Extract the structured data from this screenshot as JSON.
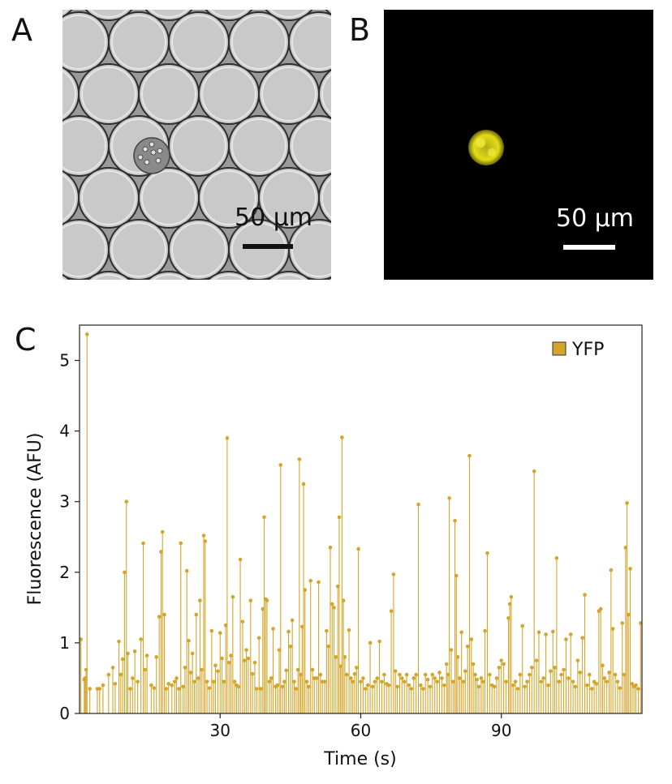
{
  "panels": {
    "a": {
      "label": "A",
      "scale_label": "50 µm"
    },
    "b": {
      "label": "B",
      "scale_label": "50 µm"
    },
    "c": {
      "label": "C"
    }
  },
  "colors": {
    "series": "#d4a52a",
    "fluor_cell": "#e8e41a"
  },
  "chart_data": {
    "type": "stem",
    "xlabel": "Time (s)",
    "ylabel": "Fluorescence (AFU)",
    "xlim": [
      0,
      120
    ],
    "ylim": [
      0,
      5.5
    ],
    "xticks": [
      30,
      60,
      90
    ],
    "yticks": [
      0,
      1,
      2,
      3,
      4,
      5
    ],
    "legend": {
      "position": "top-right"
    },
    "series": [
      {
        "name": "YFP",
        "color": "#d4a52a",
        "points": [
          [
            0.3,
            1.05
          ],
          [
            1.0,
            0.48
          ],
          [
            1.2,
            0.5
          ],
          [
            1.4,
            0.62
          ],
          [
            1.6,
            5.37
          ],
          [
            2.2,
            0.35
          ],
          [
            3.8,
            0.35
          ],
          [
            4.3,
            0.35
          ],
          [
            5.0,
            0.4
          ],
          [
            6.2,
            0.55
          ],
          [
            7.1,
            0.65
          ],
          [
            7.6,
            0.42
          ],
          [
            8.4,
            1.02
          ],
          [
            8.8,
            0.55
          ],
          [
            9.2,
            0.77
          ],
          [
            9.6,
            2.0
          ],
          [
            10.0,
            3.0
          ],
          [
            10.3,
            0.85
          ],
          [
            10.8,
            0.35
          ],
          [
            11.3,
            0.5
          ],
          [
            11.8,
            0.88
          ],
          [
            12.4,
            0.45
          ],
          [
            13.1,
            1.05
          ],
          [
            13.6,
            2.41
          ],
          [
            14.0,
            0.62
          ],
          [
            14.4,
            0.82
          ],
          [
            15.3,
            0.4
          ],
          [
            15.9,
            0.36
          ],
          [
            16.4,
            0.8
          ],
          [
            17.0,
            1.37
          ],
          [
            17.4,
            2.29
          ],
          [
            17.7,
            2.57
          ],
          [
            18.1,
            1.4
          ],
          [
            18.5,
            0.35
          ],
          [
            19.0,
            0.42
          ],
          [
            19.7,
            0.4
          ],
          [
            20.3,
            0.45
          ],
          [
            20.7,
            0.5
          ],
          [
            21.2,
            0.35
          ],
          [
            21.6,
            2.41
          ],
          [
            22.1,
            0.38
          ],
          [
            22.5,
            0.65
          ],
          [
            22.9,
            2.02
          ],
          [
            23.3,
            1.03
          ],
          [
            23.7,
            0.58
          ],
          [
            24.1,
            0.85
          ],
          [
            24.5,
            0.45
          ],
          [
            24.9,
            1.4
          ],
          [
            25.3,
            0.5
          ],
          [
            25.7,
            1.6
          ],
          [
            26.1,
            0.62
          ],
          [
            26.5,
            2.52
          ],
          [
            26.8,
            2.44
          ],
          [
            27.2,
            0.45
          ],
          [
            27.7,
            0.36
          ],
          [
            28.2,
            1.17
          ],
          [
            28.6,
            0.45
          ],
          [
            29.0,
            0.68
          ],
          [
            29.5,
            0.6
          ],
          [
            30.0,
            1.14
          ],
          [
            30.4,
            0.78
          ],
          [
            30.8,
            0.45
          ],
          [
            31.2,
            1.25
          ],
          [
            31.5,
            3.9
          ],
          [
            31.9,
            0.72
          ],
          [
            32.3,
            0.82
          ],
          [
            32.7,
            1.65
          ],
          [
            33.1,
            0.45
          ],
          [
            33.5,
            0.4
          ],
          [
            33.9,
            0.38
          ],
          [
            34.3,
            2.18
          ],
          [
            34.8,
            1.3
          ],
          [
            35.2,
            0.75
          ],
          [
            35.6,
            0.9
          ],
          [
            36.0,
            0.78
          ],
          [
            36.5,
            1.6
          ],
          [
            36.9,
            0.56
          ],
          [
            37.4,
            0.72
          ],
          [
            37.8,
            0.35
          ],
          [
            38.3,
            1.07
          ],
          [
            38.7,
            0.35
          ],
          [
            39.1,
            1.48
          ],
          [
            39.4,
            2.78
          ],
          [
            39.7,
            1.62
          ],
          [
            40.0,
            1.6
          ],
          [
            40.5,
            0.45
          ],
          [
            40.9,
            0.5
          ],
          [
            41.3,
            1.2
          ],
          [
            41.8,
            0.38
          ],
          [
            42.2,
            0.4
          ],
          [
            42.6,
            0.9
          ],
          [
            42.9,
            3.52
          ],
          [
            43.3,
            0.38
          ],
          [
            43.7,
            0.45
          ],
          [
            44.1,
            0.61
          ],
          [
            44.6,
            1.16
          ],
          [
            45.0,
            0.95
          ],
          [
            45.4,
            1.32
          ],
          [
            45.8,
            0.45
          ],
          [
            46.2,
            0.35
          ],
          [
            46.6,
            0.62
          ],
          [
            46.9,
            3.6
          ],
          [
            47.2,
            0.55
          ],
          [
            47.5,
            1.23
          ],
          [
            47.8,
            3.25
          ],
          [
            48.1,
            1.75
          ],
          [
            48.5,
            0.45
          ],
          [
            48.9,
            0.38
          ],
          [
            49.3,
            1.88
          ],
          [
            49.7,
            0.62
          ],
          [
            50.1,
            0.5
          ],
          [
            50.6,
            0.5
          ],
          [
            51.0,
            1.86
          ],
          [
            51.4,
            0.55
          ],
          [
            51.8,
            0.45
          ],
          [
            52.3,
            0.45
          ],
          [
            52.7,
            1.17
          ],
          [
            53.1,
            0.95
          ],
          [
            53.5,
            2.35
          ],
          [
            53.9,
            1.55
          ],
          [
            54.3,
            1.5
          ],
          [
            54.7,
            0.8
          ],
          [
            55.1,
            1.8
          ],
          [
            55.4,
            2.78
          ],
          [
            55.7,
            0.67
          ],
          [
            56.0,
            3.91
          ],
          [
            56.3,
            1.6
          ],
          [
            56.6,
            0.8
          ],
          [
            57.0,
            0.55
          ],
          [
            57.5,
            1.18
          ],
          [
            57.9,
            0.5
          ],
          [
            58.3,
            0.45
          ],
          [
            58.7,
            0.56
          ],
          [
            59.1,
            0.65
          ],
          [
            59.5,
            2.33
          ],
          [
            60.0,
            0.45
          ],
          [
            60.5,
            0.5
          ],
          [
            61.0,
            0.35
          ],
          [
            61.5,
            0.4
          ],
          [
            62.0,
            1.0
          ],
          [
            62.5,
            0.38
          ],
          [
            63.0,
            0.45
          ],
          [
            63.5,
            0.5
          ],
          [
            64.0,
            1.02
          ],
          [
            64.5,
            0.45
          ],
          [
            65.0,
            0.55
          ],
          [
            65.5,
            0.42
          ],
          [
            66.0,
            0.4
          ],
          [
            66.5,
            1.45
          ],
          [
            67.0,
            1.97
          ],
          [
            67.4,
            0.6
          ],
          [
            67.8,
            0.38
          ],
          [
            68.3,
            0.55
          ],
          [
            68.8,
            0.5
          ],
          [
            69.3,
            0.45
          ],
          [
            69.8,
            0.55
          ],
          [
            70.3,
            0.4
          ],
          [
            70.8,
            0.35
          ],
          [
            71.3,
            0.5
          ],
          [
            71.8,
            0.55
          ],
          [
            72.3,
            2.96
          ],
          [
            72.8,
            0.4
          ],
          [
            73.3,
            0.35
          ],
          [
            73.8,
            0.55
          ],
          [
            74.3,
            0.48
          ],
          [
            74.8,
            0.38
          ],
          [
            75.3,
            0.55
          ],
          [
            75.8,
            0.5
          ],
          [
            76.3,
            0.45
          ],
          [
            76.8,
            0.58
          ],
          [
            77.3,
            0.5
          ],
          [
            77.8,
            0.4
          ],
          [
            78.3,
            0.7
          ],
          [
            78.6,
            0.55
          ],
          [
            78.9,
            3.05
          ],
          [
            79.3,
            0.9
          ],
          [
            79.7,
            0.45
          ],
          [
            80.1,
            2.73
          ],
          [
            80.4,
            1.95
          ],
          [
            80.7,
            0.8
          ],
          [
            81.1,
            0.5
          ],
          [
            81.5,
            1.15
          ],
          [
            81.9,
            0.45
          ],
          [
            82.3,
            0.6
          ],
          [
            82.8,
            0.95
          ],
          [
            83.2,
            3.65
          ],
          [
            83.6,
            1.05
          ],
          [
            84.0,
            0.7
          ],
          [
            84.4,
            0.55
          ],
          [
            84.8,
            0.48
          ],
          [
            85.2,
            0.38
          ],
          [
            85.7,
            0.5
          ],
          [
            86.1,
            0.45
          ],
          [
            86.5,
            1.17
          ],
          [
            87.0,
            2.27
          ],
          [
            87.5,
            0.55
          ],
          [
            88.0,
            0.4
          ],
          [
            88.5,
            0.38
          ],
          [
            89.0,
            0.5
          ],
          [
            89.5,
            0.65
          ],
          [
            90.0,
            0.75
          ],
          [
            90.5,
            0.7
          ],
          [
            91.0,
            0.45
          ],
          [
            91.5,
            1.35
          ],
          [
            91.8,
            1.55
          ],
          [
            92.1,
            1.65
          ],
          [
            92.5,
            0.4
          ],
          [
            93.0,
            0.45
          ],
          [
            93.5,
            0.35
          ],
          [
            94.0,
            0.55
          ],
          [
            94.5,
            1.24
          ],
          [
            95.0,
            0.38
          ],
          [
            95.5,
            0.45
          ],
          [
            96.0,
            0.55
          ],
          [
            96.5,
            0.65
          ],
          [
            97.0,
            3.43
          ],
          [
            97.5,
            0.75
          ],
          [
            98.0,
            1.15
          ],
          [
            98.5,
            0.45
          ],
          [
            99.0,
            0.5
          ],
          [
            99.5,
            1.12
          ],
          [
            100.0,
            0.4
          ],
          [
            100.5,
            0.6
          ],
          [
            101.0,
            1.16
          ],
          [
            101.4,
            0.65
          ],
          [
            101.8,
            2.2
          ],
          [
            102.3,
            0.45
          ],
          [
            102.8,
            0.55
          ],
          [
            103.3,
            0.62
          ],
          [
            103.8,
            1.05
          ],
          [
            104.3,
            0.5
          ],
          [
            104.8,
            1.12
          ],
          [
            105.3,
            0.45
          ],
          [
            105.8,
            0.38
          ],
          [
            106.3,
            0.75
          ],
          [
            106.8,
            0.58
          ],
          [
            107.3,
            1.07
          ],
          [
            107.8,
            1.68
          ],
          [
            108.3,
            0.4
          ],
          [
            108.8,
            0.55
          ],
          [
            109.3,
            0.35
          ],
          [
            109.8,
            0.45
          ],
          [
            110.3,
            0.42
          ],
          [
            110.8,
            1.45
          ],
          [
            111.2,
            1.48
          ],
          [
            111.6,
            0.68
          ],
          [
            112.0,
            0.5
          ],
          [
            112.5,
            0.45
          ],
          [
            113.0,
            0.58
          ],
          [
            113.4,
            2.03
          ],
          [
            113.8,
            1.2
          ],
          [
            114.3,
            0.55
          ],
          [
            114.8,
            0.45
          ],
          [
            115.3,
            0.36
          ],
          [
            115.8,
            1.28
          ],
          [
            116.2,
            0.55
          ],
          [
            116.5,
            2.35
          ],
          [
            116.8,
            2.98
          ],
          [
            117.1,
            1.4
          ],
          [
            117.5,
            2.05
          ],
          [
            117.9,
            0.42
          ],
          [
            118.3,
            0.38
          ],
          [
            118.7,
            0.4
          ],
          [
            119.2,
            0.35
          ],
          [
            119.7,
            1.28
          ]
        ]
      }
    ]
  }
}
